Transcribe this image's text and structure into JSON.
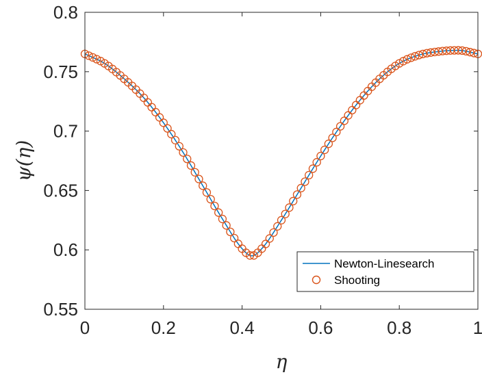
{
  "chart_data": {
    "type": "line",
    "title": "",
    "xlabel": "η",
    "ylabel": "ψ(η)",
    "xlim": [
      0,
      1
    ],
    "ylim": [
      0.55,
      0.8
    ],
    "x_ticks": [
      {
        "value": 0,
        "label": "0"
      },
      {
        "value": 0.2,
        "label": "0.2"
      },
      {
        "value": 0.4,
        "label": "0.4"
      },
      {
        "value": 0.6,
        "label": "0.6"
      },
      {
        "value": 0.8,
        "label": "0.8"
      },
      {
        "value": 1,
        "label": "1"
      }
    ],
    "y_ticks": [
      {
        "value": 0.55,
        "label": "0.55"
      },
      {
        "value": 0.6,
        "label": "0.6"
      },
      {
        "value": 0.65,
        "label": "0.65"
      },
      {
        "value": 0.7,
        "label": "0.7"
      },
      {
        "value": 0.75,
        "label": "0.75"
      },
      {
        "value": 0.8,
        "label": "0.8"
      }
    ],
    "grid": false,
    "box": true,
    "legend_position": "bottom-right",
    "series": [
      {
        "name": "Newton-Linesearch",
        "style": "line",
        "color": "#0072BD",
        "x": [
          0,
          0.05,
          0.1,
          0.15,
          0.2,
          0.25,
          0.3,
          0.35,
          0.4,
          0.425,
          0.45,
          0.5,
          0.55,
          0.6,
          0.65,
          0.7,
          0.75,
          0.8,
          0.85,
          0.9,
          0.95,
          1
        ],
        "y": [
          0.765,
          0.757,
          0.744,
          0.728,
          0.707,
          0.682,
          0.654,
          0.626,
          0.601,
          0.595,
          0.601,
          0.625,
          0.652,
          0.679,
          0.704,
          0.726,
          0.744,
          0.757,
          0.764,
          0.767,
          0.768,
          0.765
        ]
      },
      {
        "name": "Shooting",
        "style": "markers",
        "marker": "circle",
        "color": "#D95319",
        "x": [
          0,
          0.05,
          0.1,
          0.15,
          0.2,
          0.25,
          0.3,
          0.35,
          0.4,
          0.425,
          0.45,
          0.5,
          0.55,
          0.6,
          0.65,
          0.7,
          0.75,
          0.8,
          0.85,
          0.9,
          0.95,
          1
        ],
        "y": [
          0.765,
          0.757,
          0.744,
          0.728,
          0.707,
          0.682,
          0.654,
          0.626,
          0.601,
          0.595,
          0.601,
          0.625,
          0.652,
          0.679,
          0.704,
          0.726,
          0.744,
          0.757,
          0.764,
          0.767,
          0.768,
          0.765
        ]
      }
    ]
  }
}
